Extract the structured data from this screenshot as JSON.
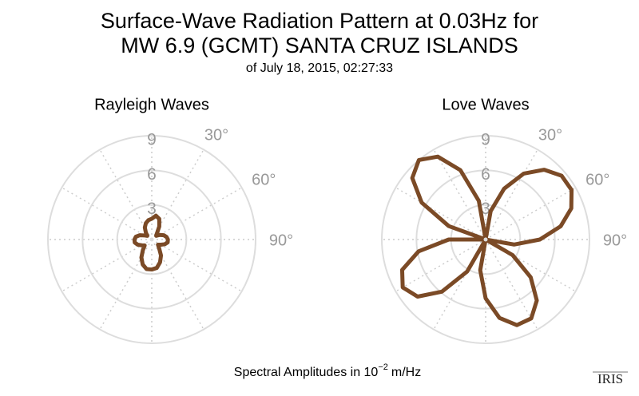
{
  "header": {
    "title_lines": [
      "Surface-Wave Radiation Pattern at 0.03Hz for",
      "MW 6.9 (GCMT) SANTA CRUZ ISLANDS"
    ],
    "subtitle": "of July 18, 2015, 02:27:33"
  },
  "footer": {
    "caption": "Spectral Amplitudes in 10",
    "exponent": "−2",
    "unit": "m/Hz",
    "logo": "IRIS"
  },
  "chart_data": [
    {
      "type": "polar",
      "title": "Rayleigh Waves",
      "color": "#7b4a26",
      "theta": [
        0,
        10,
        20,
        30,
        40,
        50,
        60,
        70,
        80,
        90,
        100,
        110,
        120,
        130,
        140,
        150,
        160,
        170,
        180,
        190,
        200,
        210,
        220,
        230,
        240,
        250,
        260,
        270,
        280,
        290,
        300,
        310,
        320,
        330,
        340,
        350
      ],
      "values": [
        1.8,
        2.1,
        1.9,
        1.3,
        0.7,
        0.5,
        0.8,
        1.1,
        1.3,
        1.4,
        1.4,
        1.2,
        0.9,
        0.7,
        1.0,
        1.6,
        2.1,
        2.5,
        2.6,
        2.6,
        2.3,
        1.8,
        1.2,
        0.8,
        1.0,
        1.3,
        1.5,
        1.5,
        1.4,
        1.1,
        0.7,
        0.5,
        0.8,
        1.2,
        1.5,
        1.7
      ],
      "rlim": [
        0,
        9
      ],
      "rticks": [
        3,
        6,
        9
      ],
      "theta_grid": [
        0,
        30,
        60,
        90,
        120,
        150,
        180,
        210,
        240,
        270,
        300,
        330
      ],
      "thetaticks": [
        {
          "value": 30,
          "label": "30°"
        },
        {
          "value": 60,
          "label": "60°"
        },
        {
          "value": 90,
          "label": "90°"
        }
      ]
    },
    {
      "type": "polar",
      "title": "Love Waves",
      "color": "#7b4a26",
      "theta": [
        0,
        10,
        20,
        30,
        40,
        50,
        60,
        70,
        80,
        90,
        100,
        110,
        120,
        130,
        140,
        150,
        160,
        170,
        180,
        190,
        200,
        210,
        220,
        230,
        240,
        250,
        260,
        270,
        280,
        290,
        300,
        310,
        320,
        330,
        340,
        350
      ],
      "values": [
        0,
        2.5,
        4.7,
        6.6,
        7.9,
        8.6,
        8.6,
        7.9,
        6.6,
        4.7,
        2.5,
        0,
        2.7,
        5.1,
        6.9,
        7.9,
        7.9,
        6.9,
        5.1,
        2.7,
        0,
        3.2,
        5.9,
        7.7,
        8.3,
        7.7,
        5.9,
        3.2,
        0,
        3.4,
        6.4,
        8.3,
        9.0,
        8.3,
        6.4,
        3.4
      ],
      "rlim": [
        0,
        9
      ],
      "rticks": [
        3,
        6,
        9
      ],
      "theta_grid": [
        0,
        30,
        60,
        90,
        120,
        150,
        180,
        210,
        240,
        270,
        300,
        330
      ],
      "thetaticks": [
        {
          "value": 30,
          "label": "30°"
        },
        {
          "value": 60,
          "label": "60°"
        },
        {
          "value": 90,
          "label": "90°"
        }
      ]
    }
  ]
}
